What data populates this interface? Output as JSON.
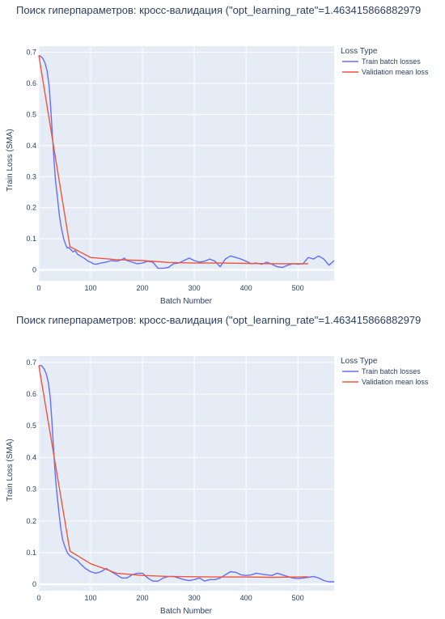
{
  "colors": {
    "plot_bg": "#e5ecf6",
    "grid": "#ffffff",
    "text": "#2a3f5f",
    "train": "#636efa",
    "validation": "#ef553b"
  },
  "chart_data": [
    {
      "type": "line",
      "title": "Поиск гиперпараметров: кросс-валидация (\"opt_learning_rate\"=1.463415866882979",
      "xlabel": "Batch Number",
      "ylabel": "Train Loss (SMA)",
      "xlim": [
        0,
        570
      ],
      "ylim": [
        -0.035,
        0.72
      ],
      "xticks": [
        0,
        100,
        200,
        300,
        400,
        500
      ],
      "yticks": [
        0,
        0.1,
        0.2,
        0.3,
        0.4,
        0.5,
        0.6,
        0.7
      ],
      "ytick_labels": [
        "0",
        "0.1",
        "0.2",
        "0.3",
        "0.4",
        "0.5",
        "0.6",
        "0.7"
      ],
      "grid": true,
      "legend": {
        "title": "Loss Type",
        "position": "top-right-outside"
      },
      "series": [
        {
          "name": "Train batch losses",
          "color": "#636efa",
          "x": [
            0,
            3,
            8,
            12,
            16,
            20,
            23,
            26,
            29,
            32,
            36,
            40,
            44,
            48,
            52,
            55,
            58,
            62,
            66,
            70,
            75,
            80,
            85,
            90,
            95,
            100,
            105,
            110,
            115,
            120,
            130,
            140,
            150,
            160,
            165,
            170,
            180,
            190,
            200,
            210,
            220,
            230,
            240,
            250,
            260,
            270,
            280,
            290,
            300,
            310,
            320,
            330,
            340,
            350,
            360,
            370,
            380,
            390,
            400,
            410,
            420,
            430,
            440,
            450,
            460,
            470,
            480,
            490,
            500,
            510,
            520,
            530,
            540,
            550,
            560,
            570
          ],
          "y": [
            0.69,
            0.688,
            0.68,
            0.665,
            0.64,
            0.59,
            0.52,
            0.44,
            0.36,
            0.29,
            0.23,
            0.17,
            0.13,
            0.1,
            0.08,
            0.07,
            0.072,
            0.065,
            0.058,
            0.062,
            0.05,
            0.045,
            0.04,
            0.035,
            0.028,
            0.025,
            0.02,
            0.018,
            0.02,
            0.022,
            0.025,
            0.03,
            0.028,
            0.033,
            0.038,
            0.03,
            0.025,
            0.02,
            0.022,
            0.028,
            0.025,
            0.005,
            0.005,
            0.008,
            0.02,
            0.022,
            0.03,
            0.038,
            0.03,
            0.025,
            0.028,
            0.035,
            0.028,
            0.01,
            0.035,
            0.045,
            0.04,
            0.035,
            0.028,
            0.02,
            0.022,
            0.018,
            0.025,
            0.018,
            0.01,
            0.008,
            0.015,
            0.02,
            0.018,
            0.02,
            0.04,
            0.035,
            0.045,
            0.035,
            0.015,
            0.03
          ]
        },
        {
          "name": "Validation mean loss",
          "color": "#ef553b",
          "x": [
            0,
            60,
            100,
            150,
            200,
            250,
            300,
            350,
            400,
            450,
            500,
            520
          ],
          "y": [
            0.69,
            0.075,
            0.04,
            0.033,
            0.03,
            0.024,
            0.022,
            0.022,
            0.021,
            0.02,
            0.02,
            0.02
          ]
        }
      ]
    },
    {
      "type": "line",
      "title": "Поиск гиперпараметров: кросс-валидация (\"opt_learning_rate\"=1.463415866882979",
      "xlabel": "Batch Number",
      "ylabel": "Train Loss (SMA)",
      "xlim": [
        0,
        570
      ],
      "ylim": [
        -0.02,
        0.72
      ],
      "xticks": [
        0,
        100,
        200,
        300,
        400,
        500
      ],
      "yticks": [
        0,
        0.1,
        0.2,
        0.3,
        0.4,
        0.5,
        0.6,
        0.7
      ],
      "ytick_labels": [
        "0",
        "0.1",
        "0.2",
        "0.3",
        "0.4",
        "0.5",
        "0.6",
        "0.7"
      ],
      "grid": true,
      "legend": {
        "title": "Loss Type",
        "position": "top-right-outside"
      },
      "series": [
        {
          "name": "Train batch losses",
          "color": "#636efa",
          "x": [
            0,
            5,
            10,
            14,
            18,
            22,
            25,
            28,
            31,
            34,
            38,
            42,
            46,
            50,
            55,
            60,
            65,
            70,
            75,
            80,
            90,
            100,
            110,
            120,
            130,
            140,
            150,
            160,
            170,
            180,
            190,
            200,
            210,
            220,
            230,
            240,
            250,
            260,
            270,
            280,
            290,
            300,
            310,
            320,
            330,
            340,
            350,
            360,
            370,
            380,
            390,
            400,
            410,
            420,
            430,
            440,
            450,
            460,
            470,
            480,
            490,
            500,
            510,
            520,
            530,
            540,
            550,
            560,
            570
          ],
          "y": [
            0.69,
            0.69,
            0.68,
            0.665,
            0.64,
            0.59,
            0.52,
            0.44,
            0.36,
            0.3,
            0.24,
            0.18,
            0.14,
            0.12,
            0.1,
            0.09,
            0.085,
            0.08,
            0.075,
            0.065,
            0.05,
            0.04,
            0.035,
            0.04,
            0.05,
            0.04,
            0.03,
            0.02,
            0.02,
            0.03,
            0.035,
            0.035,
            0.02,
            0.01,
            0.01,
            0.02,
            0.025,
            0.025,
            0.02,
            0.015,
            0.012,
            0.015,
            0.02,
            0.01,
            0.015,
            0.015,
            0.02,
            0.03,
            0.04,
            0.038,
            0.03,
            0.028,
            0.03,
            0.035,
            0.032,
            0.03,
            0.028,
            0.035,
            0.03,
            0.025,
            0.02,
            0.018,
            0.02,
            0.022,
            0.025,
            0.02,
            0.012,
            0.008,
            0.008
          ]
        },
        {
          "name": "Validation mean loss",
          "color": "#ef553b",
          "x": [
            0,
            60,
            100,
            150,
            200,
            250,
            300,
            350,
            400,
            450,
            500,
            520
          ],
          "y": [
            0.69,
            0.105,
            0.065,
            0.035,
            0.028,
            0.025,
            0.024,
            0.023,
            0.023,
            0.022,
            0.023,
            0.024
          ]
        }
      ]
    }
  ]
}
